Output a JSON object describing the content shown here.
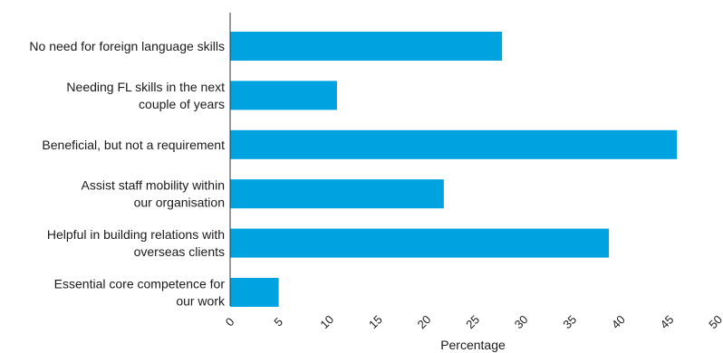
{
  "chart_data": {
    "type": "bar",
    "orientation": "horizontal",
    "categories": [
      [
        "No need for foreign language skills"
      ],
      [
        "Needing FL skills in the next",
        "couple of years"
      ],
      [
        "Beneficial, but not a requirement"
      ],
      [
        "Assist staff mobility within",
        "our organisation"
      ],
      [
        "Helpful in building relations with",
        "overseas clients"
      ],
      [
        "Essential core competence for",
        "our work"
      ]
    ],
    "values": [
      28,
      11,
      46,
      22,
      39,
      5
    ],
    "xlim": [
      0,
      50
    ],
    "xticks": [
      "0",
      "5",
      "10",
      "15",
      "20",
      "25",
      "30",
      "35",
      "40",
      "45",
      "50"
    ],
    "xlabel": "Percentage",
    "ylabel": "",
    "grid": false,
    "bar_color": "#00A3E0"
  }
}
